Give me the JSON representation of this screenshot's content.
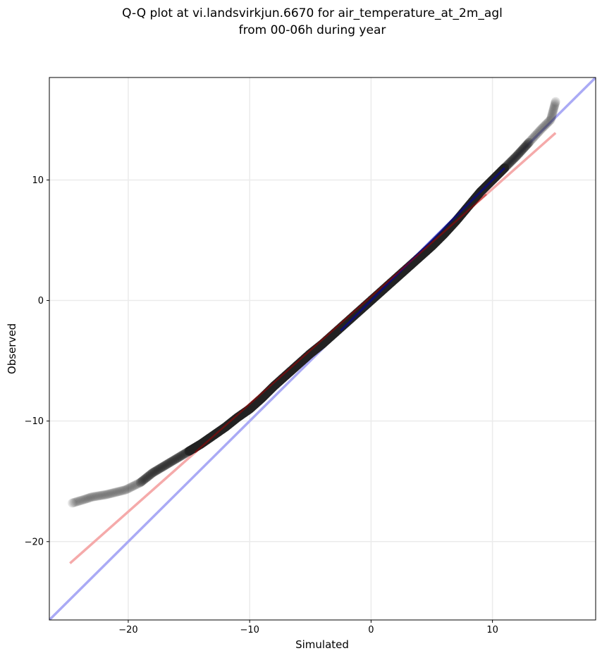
{
  "chart_data": {
    "type": "scatter",
    "title_lines": [
      "Q-Q plot at vi.landsvirkjun.6670 for air_temperature_at_2m_agl",
      "from 00-06h during year"
    ],
    "xlabel": "Simulated",
    "ylabel": "Observed",
    "xlim": [
      -26.5,
      18.5
    ],
    "ylim": [
      -26.5,
      18.5
    ],
    "xticks": [
      {
        "value": -20,
        "label": "−20"
      },
      {
        "value": -10,
        "label": "−10"
      },
      {
        "value": 0,
        "label": "0"
      },
      {
        "value": 10,
        "label": "10"
      }
    ],
    "yticks": [
      {
        "value": -20,
        "label": "−20"
      },
      {
        "value": -10,
        "label": "−10"
      },
      {
        "value": 0,
        "label": "0"
      },
      {
        "value": 10,
        "label": "10"
      }
    ],
    "grid": true,
    "quantile_points": [
      {
        "x": -24.6,
        "y": -16.8
      },
      {
        "x": -23.6,
        "y": -16.5
      },
      {
        "x": -23.0,
        "y": -16.3
      },
      {
        "x": -21.8,
        "y": -16.1
      },
      {
        "x": -20.2,
        "y": -15.7
      },
      {
        "x": -19.0,
        "y": -15.1
      },
      {
        "x": -18.0,
        "y": -14.3
      },
      {
        "x": -17.0,
        "y": -13.7
      },
      {
        "x": -16.0,
        "y": -13.1
      },
      {
        "x": -15.0,
        "y": -12.5
      },
      {
        "x": -14.0,
        "y": -11.9
      },
      {
        "x": -13.0,
        "y": -11.2
      },
      {
        "x": -12.0,
        "y": -10.5
      },
      {
        "x": -11.0,
        "y": -9.7
      },
      {
        "x": -10.0,
        "y": -9.0
      },
      {
        "x": -9.0,
        "y": -8.1
      },
      {
        "x": -8.0,
        "y": -7.1
      },
      {
        "x": -7.0,
        "y": -6.2
      },
      {
        "x": -6.0,
        "y": -5.3
      },
      {
        "x": -5.0,
        "y": -4.4
      },
      {
        "x": -4.0,
        "y": -3.6
      },
      {
        "x": -3.0,
        "y": -2.7
      },
      {
        "x": -2.0,
        "y": -1.8
      },
      {
        "x": -1.0,
        "y": -0.9
      },
      {
        "x": 0.0,
        "y": 0.0
      },
      {
        "x": 1.0,
        "y": 0.9
      },
      {
        "x": 2.0,
        "y": 1.8
      },
      {
        "x": 3.0,
        "y": 2.7
      },
      {
        "x": 4.0,
        "y": 3.6
      },
      {
        "x": 5.0,
        "y": 4.5
      },
      {
        "x": 6.0,
        "y": 5.5
      },
      {
        "x": 7.0,
        "y": 6.6
      },
      {
        "x": 8.0,
        "y": 7.8
      },
      {
        "x": 9.0,
        "y": 9.0
      },
      {
        "x": 10.0,
        "y": 10.0
      },
      {
        "x": 11.0,
        "y": 11.0
      },
      {
        "x": 12.0,
        "y": 12.0
      },
      {
        "x": 13.0,
        "y": 13.1
      },
      {
        "x": 14.0,
        "y": 14.2
      },
      {
        "x": 14.8,
        "y": 15.0
      },
      {
        "x": 15.2,
        "y": 16.5
      }
    ],
    "reference_lines": [
      {
        "kind": "one-to-one",
        "color": "#aaaaf5",
        "x": [
          -26.5,
          18.5
        ],
        "y": [
          -26.5,
          18.5
        ]
      },
      {
        "kind": "fit",
        "color": "#f5aaaa",
        "x": [
          -24.8,
          15.2
        ],
        "y": [
          -21.8,
          13.9
        ]
      }
    ],
    "colors": {
      "points": "#222222",
      "one_to_one_line": "#aaaaf5",
      "fit_line": "#f5aaaa",
      "one_to_one_overlay": "#0000aa",
      "fit_overlay": "#aa0000",
      "grid": "#ebebeb"
    }
  }
}
